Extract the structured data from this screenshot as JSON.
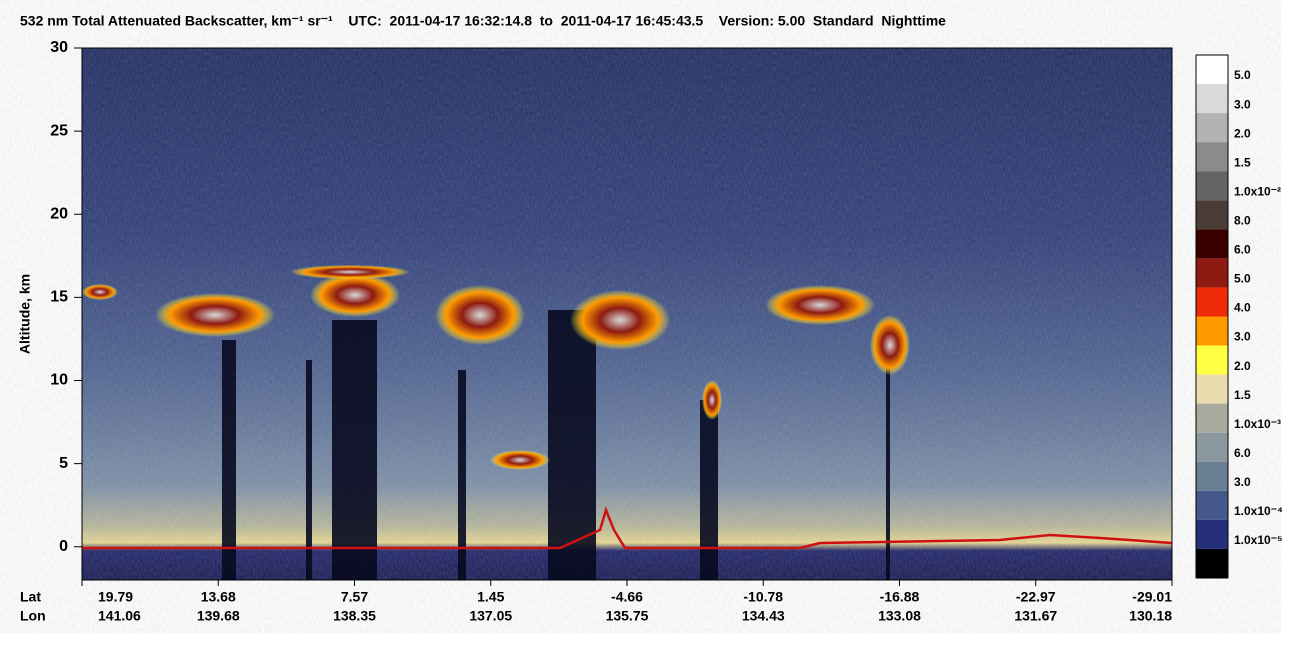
{
  "chart_data": {
    "type": "curtain",
    "title": "532 nm Total Attenuated Backscatter, km⁻¹ sr⁻¹    UTC:  2011-04-17 16:32:14.8  to  2011-04-17 16:45:43.5    Version: 5.00  Standard  Nighttime",
    "y_label": "Altitude, km",
    "ylim": [
      -2,
      30
    ],
    "yticks": [
      0,
      5,
      10,
      15,
      20,
      25,
      30
    ],
    "x_row_labels": [
      "Lat",
      "Lon"
    ],
    "lat": [
      "19.79",
      "13.68",
      "7.57",
      "1.45",
      "-4.66",
      "-10.78",
      "-16.88",
      "-22.97",
      "-29.01"
    ],
    "lon": [
      "141.06",
      "139.68",
      "138.35",
      "137.05",
      "135.75",
      "134.43",
      "133.08",
      "131.67",
      "130.18"
    ],
    "colorbar": {
      "colors": [
        "#ffffff",
        "#d9d9d9",
        "#b2b2b2",
        "#8b8b8b",
        "#646464",
        "#4a3d38",
        "#3a0000",
        "#8e1a12",
        "#ee2a08",
        "#ff9a00",
        "#ffff44",
        "#eadcae",
        "#aaaa9e",
        "#8c98a0",
        "#6a7e94",
        "#44588a",
        "#26307a",
        "#000000"
      ],
      "labels": [
        "5.0",
        "3.0",
        "2.0",
        "1.5",
        "1.0x10⁻²",
        "8.0",
        "6.0",
        "5.0",
        "4.0",
        "3.0",
        "2.0",
        "1.5",
        "1.0x10⁻³",
        "6.0",
        "3.0",
        "1.0x10⁻⁴",
        "1.0x10⁻⁵"
      ]
    }
  }
}
